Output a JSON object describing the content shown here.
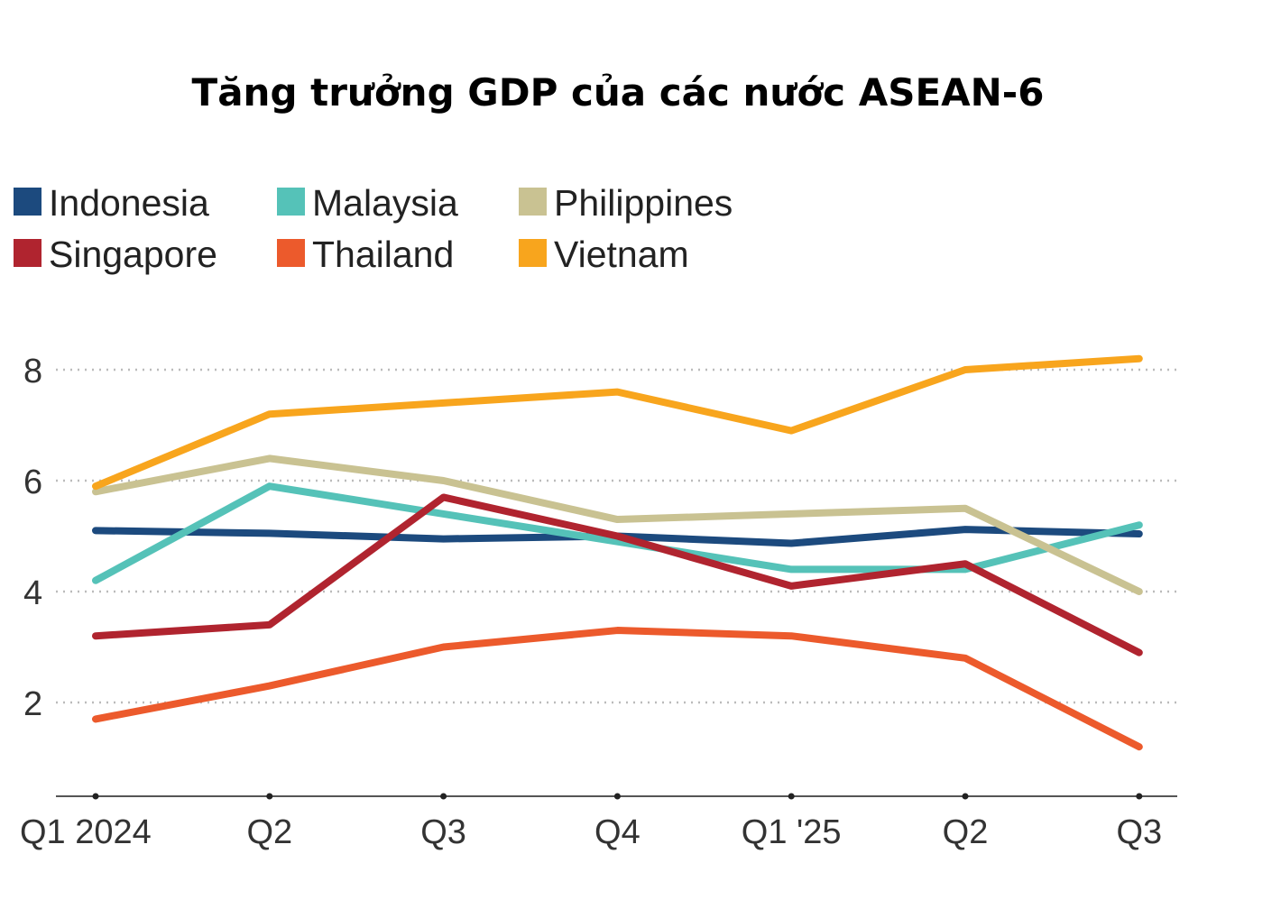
{
  "chart_data": {
    "type": "line",
    "title": "Tăng trưởng GDP của các nước ASEAN-6",
    "categories": [
      "Q1 2024",
      "Q2",
      "Q3",
      "Q4",
      "Q1 '25",
      "Q2",
      "Q3"
    ],
    "yticks": [
      2,
      4,
      6,
      8
    ],
    "ylim": [
      0.3,
      8.8
    ],
    "grid": "horizontal dotted",
    "legend_position": "top-left",
    "series": [
      {
        "name": "Indonesia",
        "color": "#1c4a7e",
        "values": [
          5.1,
          5.05,
          4.95,
          5.0,
          4.87,
          5.12,
          5.04
        ]
      },
      {
        "name": "Malaysia",
        "color": "#55c2b8",
        "values": [
          4.2,
          5.9,
          5.4,
          4.9,
          4.4,
          4.4,
          5.2
        ]
      },
      {
        "name": "Philippines",
        "color": "#c9c292",
        "values": [
          5.8,
          6.4,
          6.0,
          5.3,
          5.4,
          5.5,
          4.0
        ]
      },
      {
        "name": "Singapore",
        "color": "#b0242f",
        "values": [
          3.2,
          3.4,
          5.7,
          5.0,
          4.1,
          4.5,
          2.9
        ]
      },
      {
        "name": "Thailand",
        "color": "#ec5a2c",
        "values": [
          1.7,
          2.3,
          3.0,
          3.3,
          3.2,
          2.8,
          1.2
        ]
      },
      {
        "name": "Vietnam",
        "color": "#f8a51d",
        "values": [
          5.9,
          7.2,
          7.4,
          7.6,
          6.9,
          8.0,
          8.2
        ]
      }
    ]
  }
}
